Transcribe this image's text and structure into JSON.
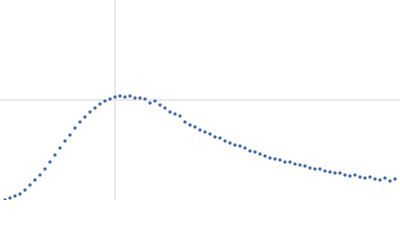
{
  "chart_data": {
    "type": "scatter",
    "x": [
      5,
      10,
      15,
      20,
      25,
      30,
      35,
      40,
      45,
      50,
      55,
      60,
      65,
      70,
      75,
      80,
      85,
      90,
      95,
      100,
      105,
      110,
      115,
      120,
      125,
      130,
      135,
      140,
      145,
      150,
      155,
      160,
      165,
      170,
      175,
      180,
      185,
      190,
      195,
      200,
      205,
      210,
      215,
      220,
      225,
      230,
      235,
      240,
      245,
      250,
      255,
      260,
      265,
      270,
      275,
      280,
      285,
      290,
      295,
      300,
      305,
      310,
      315,
      320,
      325,
      330,
      335,
      340,
      345,
      350,
      355,
      360,
      365,
      370,
      375,
      380,
      385,
      390,
      395
    ],
    "values": [
      0,
      2,
      4,
      6,
      10,
      15,
      20,
      25,
      31,
      38,
      45,
      52,
      59,
      65,
      72,
      78,
      83,
      88,
      92,
      96,
      99,
      101,
      103,
      104,
      103,
      104,
      102,
      102,
      101,
      97,
      99,
      95,
      92,
      88,
      86,
      84,
      78,
      75,
      73,
      70,
      68,
      66,
      63,
      62,
      59,
      57,
      55,
      54,
      52,
      49,
      48,
      46,
      44,
      42,
      41,
      40,
      38,
      38,
      36,
      35,
      34,
      32,
      31,
      31,
      29,
      28,
      27,
      27,
      25,
      24,
      25,
      23,
      22,
      23,
      21,
      20,
      22,
      19,
      21
    ],
    "color": "#3a64b4",
    "xlim": [
      0,
      400
    ],
    "ylim": [
      0,
      200
    ],
    "xticks": [
      115
    ],
    "yticks": [
      100
    ],
    "grid": true
  }
}
